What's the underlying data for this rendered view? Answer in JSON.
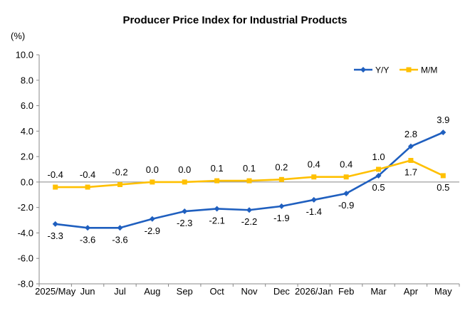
{
  "chart_data": {
    "type": "line",
    "title": "Producer Price Index for Industrial Products",
    "unit": "(%)",
    "categories": [
      "2025/May",
      "Jun",
      "Jul",
      "Aug",
      "Sep",
      "Oct",
      "Nov",
      "Dec",
      "2026/Jan",
      "Feb",
      "Mar",
      "Apr",
      "May"
    ],
    "ylim": [
      -8.0,
      10.0
    ],
    "yticks": [
      "10.0",
      "8.0",
      "6.0",
      "4.0",
      "2.0",
      "0.0",
      "-2.0",
      "-4.0",
      "-6.0",
      "-8.0"
    ],
    "grid": false,
    "legend_position": "top-right",
    "series": [
      {
        "name": "Y/Y",
        "color": "#1f5fbf",
        "marker": "diamond",
        "values": [
          -3.3,
          -3.6,
          -3.6,
          -2.9,
          -2.3,
          -2.1,
          -2.2,
          -1.9,
          -1.4,
          -0.9,
          0.5,
          2.8,
          3.9
        ],
        "labels": [
          "-3.3",
          "-3.6",
          "-3.6",
          "-2.9",
          "-2.3",
          "-2.1",
          "-2.2",
          "-1.9",
          "-1.4",
          "-0.9",
          "0.5",
          "2.8",
          "3.9"
        ]
      },
      {
        "name": "M/M",
        "color": "#ffc000",
        "marker": "square",
        "values": [
          -0.4,
          -0.4,
          -0.2,
          0.0,
          0.0,
          0.1,
          0.1,
          0.2,
          0.4,
          0.4,
          1.0,
          1.7,
          0.5
        ],
        "labels": [
          "-0.4",
          "-0.4",
          "-0.2",
          "0.0",
          "0.0",
          "0.1",
          "0.1",
          "0.2",
          "0.4",
          "0.4",
          "1.0",
          "1.7",
          "0.5"
        ]
      }
    ]
  }
}
